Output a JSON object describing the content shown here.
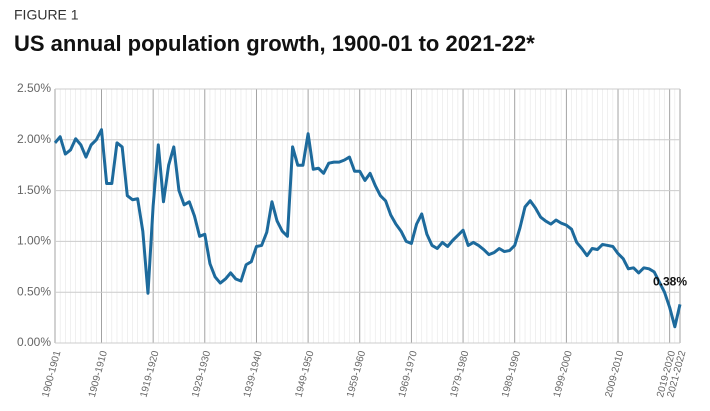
{
  "chart_data": {
    "type": "line",
    "subtitle": "FIGURE 1",
    "title": "US annual population growth, 1900-01 to 2021-22*",
    "categories": [
      "1900-1901",
      null,
      null,
      null,
      null,
      null,
      null,
      null,
      null,
      "1909-1910",
      null,
      null,
      null,
      null,
      null,
      null,
      null,
      null,
      null,
      "1919-1920",
      null,
      null,
      null,
      null,
      null,
      null,
      null,
      null,
      null,
      "1929-1930",
      null,
      null,
      null,
      null,
      null,
      null,
      null,
      null,
      null,
      "1939-1940",
      null,
      null,
      null,
      null,
      null,
      null,
      null,
      null,
      null,
      "1949-1950",
      null,
      null,
      null,
      null,
      null,
      null,
      null,
      null,
      null,
      "1959-1960",
      null,
      null,
      null,
      null,
      null,
      null,
      null,
      null,
      null,
      "1969-1970",
      null,
      null,
      null,
      null,
      null,
      null,
      null,
      null,
      null,
      "1979-1980",
      null,
      null,
      null,
      null,
      null,
      null,
      null,
      null,
      null,
      "1989-1990",
      null,
      null,
      null,
      null,
      null,
      null,
      null,
      null,
      null,
      "1999-2000",
      null,
      null,
      null,
      null,
      null,
      null,
      null,
      null,
      null,
      "2009-2010",
      null,
      null,
      null,
      null,
      null,
      null,
      null,
      null,
      null,
      "2019-2020",
      null,
      "2021-2022"
    ],
    "series": [
      {
        "name": "US annual population growth",
        "color": "#1d6a9c",
        "values": [
          1.97,
          2.03,
          1.86,
          1.9,
          2.01,
          1.95,
          1.83,
          1.95,
          2.0,
          2.1,
          1.57,
          1.57,
          1.97,
          1.93,
          1.45,
          1.41,
          1.42,
          1.1,
          0.49,
          1.35,
          1.95,
          1.39,
          1.75,
          1.93,
          1.5,
          1.36,
          1.39,
          1.25,
          1.05,
          1.07,
          0.78,
          0.65,
          0.59,
          0.63,
          0.69,
          0.63,
          0.61,
          0.77,
          0.8,
          0.95,
          0.96,
          1.09,
          1.39,
          1.2,
          1.1,
          1.05,
          1.93,
          1.75,
          1.75,
          2.06,
          1.71,
          1.72,
          1.67,
          1.77,
          1.78,
          1.78,
          1.8,
          1.83,
          1.69,
          1.69,
          1.6,
          1.67,
          1.55,
          1.45,
          1.4,
          1.26,
          1.17,
          1.1,
          1.0,
          0.98,
          1.17,
          1.27,
          1.07,
          0.96,
          0.93,
          0.99,
          0.95,
          1.01,
          1.06,
          1.11,
          0.96,
          0.99,
          0.96,
          0.92,
          0.87,
          0.89,
          0.93,
          0.9,
          0.91,
          0.96,
          1.13,
          1.34,
          1.4,
          1.33,
          1.24,
          1.2,
          1.17,
          1.21,
          1.18,
          1.16,
          1.12,
          0.99,
          0.93,
          0.86,
          0.93,
          0.92,
          0.97,
          0.96,
          0.95,
          0.88,
          0.83,
          0.73,
          0.74,
          0.69,
          0.74,
          0.73,
          0.7,
          0.6,
          0.5,
          0.35,
          0.16,
          0.38
        ],
        "value_labels": [
          null,
          null,
          null,
          null,
          null,
          null,
          null,
          null,
          null,
          null,
          null,
          null,
          null,
          null,
          null,
          null,
          null,
          null,
          null,
          null,
          null,
          null,
          null,
          null,
          null,
          null,
          null,
          null,
          null,
          null,
          null,
          null,
          null,
          null,
          null,
          null,
          null,
          null,
          null,
          null,
          null,
          null,
          null,
          null,
          null,
          null,
          null,
          null,
          null,
          null,
          null,
          null,
          null,
          null,
          null,
          null,
          null,
          null,
          null,
          null,
          null,
          null,
          null,
          null,
          null,
          null,
          null,
          null,
          null,
          null,
          null,
          null,
          null,
          null,
          null,
          null,
          null,
          null,
          null,
          null,
          null,
          null,
          null,
          null,
          null,
          null,
          null,
          null,
          null,
          null,
          null,
          null,
          null,
          null,
          null,
          null,
          null,
          null,
          null,
          null,
          null,
          null,
          null,
          null,
          null,
          null,
          null,
          null,
          null,
          null,
          null,
          null,
          null,
          null,
          null,
          null,
          null,
          null,
          null,
          null,
          null,
          "0.38%"
        ]
      }
    ],
    "ylim": [
      0,
      2.5
    ],
    "yticks": [
      {
        "value": 0,
        "label": "0.00%"
      },
      {
        "value": 0.5,
        "label": "0.50%"
      },
      {
        "value": 1,
        "label": "1.00%"
      },
      {
        "value": 1.5,
        "label": "1.50%"
      },
      {
        "value": 2,
        "label": "2.00%"
      },
      {
        "value": 2.5,
        "label": "2.50%"
      }
    ],
    "grid": true
  }
}
